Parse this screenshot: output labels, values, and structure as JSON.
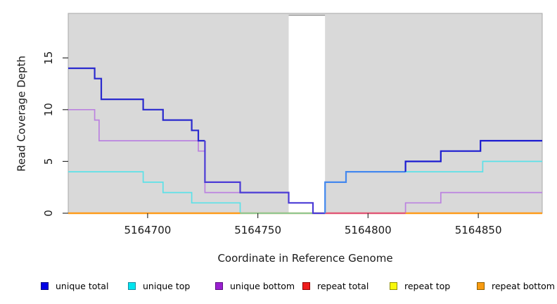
{
  "chart_data": {
    "type": "line",
    "subtype": "step-coverage",
    "title": "",
    "xlabel": "Coordinate in Reference Genome",
    "ylabel": "Read Coverage Depth",
    "xlim": [
      5164664,
      5164879
    ],
    "ylim": [
      0,
      19.3
    ],
    "x_ticks": [
      5164700,
      5164750,
      5164800,
      5164850
    ],
    "y_ticks": [
      0,
      5,
      10,
      15
    ],
    "grid": false,
    "plot_bg": "#d9d9d9",
    "plot_border": "#a8a8a8",
    "tick_color": "#333333",
    "tick_label_color": "#1a1a1a",
    "gap_band": {
      "x1": 5164764,
      "x2": 5164780.5,
      "fill": "#ffffff",
      "top_edge": "#8a8a8a"
    },
    "series": [
      {
        "key": "unique_total",
        "label": "unique total",
        "base_color": "#2222cd",
        "width": 2.2,
        "x_end": 5164879,
        "points": [
          [
            5164664,
            14
          ],
          [
            5164676,
            13
          ],
          [
            5164679,
            11
          ],
          [
            5164698,
            10
          ],
          [
            5164707,
            9
          ],
          [
            5164720,
            8
          ],
          [
            5164723,
            7
          ],
          [
            5164726,
            3
          ],
          [
            5164742,
            2
          ],
          [
            5164764,
            1
          ],
          [
            5164775,
            0
          ],
          [
            5164780.5,
            3
          ],
          [
            5164790,
            4
          ],
          [
            5164817,
            5
          ],
          [
            5164833,
            6
          ],
          [
            5164851,
            7
          ]
        ],
        "color_zones": [
          {
            "x1": 5164664,
            "x2": 5164726,
            "color": "#2a2ace"
          },
          {
            "x1": 5164726,
            "x2": 5164780.5,
            "color": "#4b3bd6"
          },
          {
            "x1": 5164780.5,
            "x2": 5164817,
            "color": "#4488ee"
          },
          {
            "x1": 5164817,
            "x2": 5164879,
            "color": "#1b1bd1"
          }
        ]
      },
      {
        "key": "unique_top",
        "label": "unique top",
        "base_color": "#5ce1e8",
        "width": 1.7,
        "x_end": 5164879,
        "points": [
          [
            5164664,
            4
          ],
          [
            5164698,
            3
          ],
          [
            5164707,
            2
          ],
          [
            5164720,
            1
          ],
          [
            5164742,
            0
          ],
          [
            5164780.5,
            3
          ],
          [
            5164790,
            4
          ],
          [
            5164852,
            5
          ]
        ]
      },
      {
        "key": "unique_bottom",
        "label": "unique bottom",
        "base_color": "#bb82e0",
        "width": 1.7,
        "x_end": 5164879,
        "points": [
          [
            5164664,
            10
          ],
          [
            5164676,
            9
          ],
          [
            5164678,
            7
          ],
          [
            5164723,
            6
          ],
          [
            5164726,
            2
          ],
          [
            5164764,
            1
          ],
          [
            5164775,
            0
          ],
          [
            5164817,
            1
          ],
          [
            5164833,
            2
          ]
        ]
      },
      {
        "key": "repeat_total",
        "label": "repeat total",
        "base_color": "#e03333",
        "width": 2.0,
        "x_end": 5164879,
        "points": [
          [
            5164664,
            0
          ]
        ]
      },
      {
        "key": "repeat_top",
        "label": "repeat top",
        "base_color": "#f2f20a",
        "width": 2.0,
        "x_end": 5164879,
        "points": [
          [
            5164664,
            0
          ]
        ]
      },
      {
        "key": "repeat_bottom",
        "label": "repeat bottom",
        "base_color": "#ff9b1a",
        "width": 2.2,
        "x_end": 5164879,
        "points": [
          [
            5164664,
            0
          ]
        ]
      }
    ],
    "zero_overlap_segments": [
      {
        "x1": 5164664,
        "x2": 5164742,
        "color": "#ff9b1a"
      },
      {
        "x1": 5164742,
        "x2": 5164780.5,
        "color": "#90c790"
      },
      {
        "x1": 5164780.5,
        "x2": 5164817,
        "color": "#e0557a"
      },
      {
        "x1": 5164817,
        "x2": 5164879,
        "color": "#ff9b1a"
      }
    ],
    "legend": [
      {
        "label": "unique total",
        "fill": "#0000e6",
        "border": "#000080"
      },
      {
        "label": "unique top",
        "fill": "#00e5ee",
        "border": "#1789a0"
      },
      {
        "label": "unique bottom",
        "fill": "#9a1fd0",
        "border": "#5a1080"
      },
      {
        "label": "repeat total",
        "fill": "#ee1c1c",
        "border": "#8f0000"
      },
      {
        "label": "repeat top",
        "fill": "#f8f80c",
        "border": "#8f8f00"
      },
      {
        "label": "repeat bottom",
        "fill": "#f89b10",
        "border": "#8f5f00"
      }
    ],
    "legend_position": "bottom"
  }
}
